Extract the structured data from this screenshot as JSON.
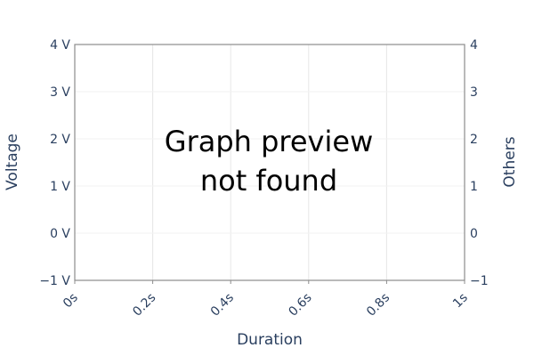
{
  "message": {
    "line1": "Graph preview",
    "line2": "not found"
  },
  "chart_data": {
    "type": "line",
    "title": "",
    "xlabel": "Duration",
    "ylabel": "Voltage",
    "y2label": "Others",
    "xlim": [
      0,
      1
    ],
    "ylim": [
      -1,
      4
    ],
    "x_ticks": [
      0,
      0.2,
      0.4,
      0.6,
      0.8,
      1
    ],
    "x_tick_labels": [
      "0s",
      "0.2s",
      "0.4s",
      "0.6s",
      "0.8s",
      "1s"
    ],
    "y_ticks": [
      -1,
      0,
      1,
      2,
      3,
      4
    ],
    "y_tick_labels": [
      "−1 V",
      "0 V",
      "1 V",
      "2 V",
      "3 V",
      "4 V"
    ],
    "y2_tick_labels": [
      "−1",
      "0",
      "1",
      "2",
      "3",
      "4"
    ],
    "series": [],
    "grid": true,
    "colors": {
      "axis": "#8c8c8c",
      "grid": "#e6e6e6",
      "tick_text": "#2a3f5f",
      "message_text": "#000000"
    }
  }
}
